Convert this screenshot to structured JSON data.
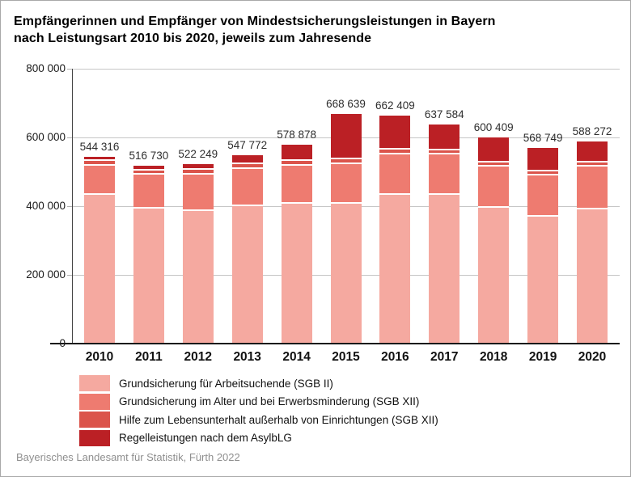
{
  "title_lines": [
    "Empfängerinnen und Empfänger von Mindestsicherungsleistungen in Bayern",
    "nach Leistungsart 2010 bis 2020, jeweils zum Jahresende"
  ],
  "source_note": "Bayerisches Landesamt für Statistik, Fürth 2022",
  "colors": {
    "grid": "#c6c6c6",
    "axis": "#1a1a1a",
    "value_label": "#2e2e2e",
    "footer_text": "#8f8f8f",
    "frame_border": "#a8a8a8",
    "background": "#ffffff"
  },
  "chart_data": {
    "type": "bar",
    "stacked": true,
    "title": "Empfängerinnen und Empfänger von Mindestsicherungsleistungen in Bayern nach Leistungsart 2010 bis 2020, jeweils zum Jahresende",
    "categories": [
      "2010",
      "2011",
      "2012",
      "2013",
      "2014",
      "2015",
      "2016",
      "2017",
      "2018",
      "2019",
      "2020"
    ],
    "totals": [
      544316,
      516730,
      522249,
      547772,
      578878,
      668639,
      662409,
      637584,
      600409,
      568749,
      588272
    ],
    "total_labels": [
      "544 316",
      "516 730",
      "522 249",
      "547 772",
      "578 878",
      "668 639",
      "662 409",
      "637 584",
      "600 409",
      "568 749",
      "588 272"
    ],
    "series": [
      {
        "name": "Grundsicherung für Arbeitsuchende (SGB II)",
        "color": "#F5A9A0",
        "values": [
          431900,
          392500,
          386400,
          400000,
          407000,
          405900,
          433400,
          431800,
          395300,
          369000,
          391100
        ]
      },
      {
        "name": "Grundsicherung im Alter und bei Erwerbsminderung (SGB XII)",
        "color": "#EE7B70",
        "values": [
          86350,
          98100,
          105000,
          108000,
          110000,
          117000,
          117500,
          118000,
          120000,
          121000,
          124000
        ]
      },
      {
        "name": "Hilfe zum Lebensunterhalt außerhalb von Einrichtungen (SGB XII)",
        "color": "#DB544B",
        "values": [
          12400,
          12450,
          13500,
          15300,
          14600,
          13650,
          14000,
          12000,
          11500,
          11500,
          11500
        ]
      },
      {
        "name": "Regelleistungen nach dem AsylbLG",
        "color": "#BB2025",
        "values": [
          13666,
          13680,
          17349,
          24472,
          47278,
          132089,
          97509,
          75784,
          73609,
          67249,
          61672
        ]
      }
    ],
    "ylim": [
      0,
      800000
    ],
    "yticks": [
      0,
      200000,
      400000,
      600000,
      800000
    ],
    "ytick_labels": [
      "0",
      "200 000",
      "400 000",
      "600 000",
      "800 000"
    ],
    "grid": true,
    "legend_position": "bottom-left",
    "value_labels": "totals above bars"
  }
}
